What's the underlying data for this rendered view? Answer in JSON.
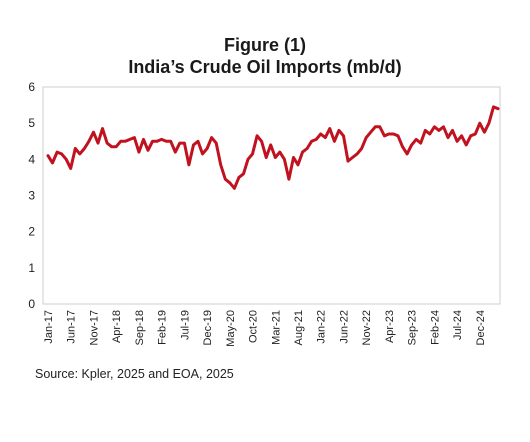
{
  "chart_data": {
    "type": "line",
    "title": "Figure (1)",
    "subtitle": "India’s Crude Oil Imports (mb/d)",
    "xlabel": "",
    "ylabel": "",
    "ylim": [
      0,
      6
    ],
    "yticks": [
      "0",
      "1",
      "2",
      "3",
      "4",
      "5",
      "6"
    ],
    "xtick_labels": [
      "Jan-17",
      "Jun-17",
      "Nov-17",
      "Apr-18",
      "Sep-18",
      "Feb-19",
      "Jul-19",
      "Dec-19",
      "May-20",
      "Oct-20",
      "Mar-21",
      "Aug-21",
      "Jan-22",
      "Jun-22",
      "Nov-22",
      "Apr-23",
      "Sep-23",
      "Feb-24",
      "Jul-24",
      "Dec-24"
    ],
    "grid": false,
    "legend": "none",
    "series": [
      {
        "color": "#c1121f",
        "x": [
          "Jan-17",
          "Feb-17",
          "Mar-17",
          "Apr-17",
          "May-17",
          "Jun-17",
          "Jul-17",
          "Aug-17",
          "Sep-17",
          "Oct-17",
          "Nov-17",
          "Dec-17",
          "Jan-18",
          "Feb-18",
          "Mar-18",
          "Apr-18",
          "May-18",
          "Jun-18",
          "Jul-18",
          "Aug-18",
          "Sep-18",
          "Oct-18",
          "Nov-18",
          "Dec-18",
          "Jan-19",
          "Feb-19",
          "Mar-19",
          "Apr-19",
          "May-19",
          "Jun-19",
          "Jul-19",
          "Aug-19",
          "Sep-19",
          "Oct-19",
          "Nov-19",
          "Dec-19",
          "Jan-20",
          "Feb-20",
          "Mar-20",
          "Apr-20",
          "May-20",
          "Jun-20",
          "Jul-20",
          "Aug-20",
          "Sep-20",
          "Oct-20",
          "Nov-20",
          "Dec-20",
          "Jan-21",
          "Feb-21",
          "Mar-21",
          "Apr-21",
          "May-21",
          "Jun-21",
          "Jul-21",
          "Aug-21",
          "Sep-21",
          "Oct-21",
          "Nov-21",
          "Dec-21",
          "Jan-22",
          "Feb-22",
          "Mar-22",
          "Apr-22",
          "May-22",
          "Jun-22",
          "Jul-22",
          "Aug-22",
          "Sep-22",
          "Oct-22",
          "Nov-22",
          "Dec-22",
          "Jan-23",
          "Feb-23",
          "Mar-23",
          "Apr-23",
          "May-23",
          "Jun-23",
          "Jul-23",
          "Aug-23",
          "Sep-23",
          "Oct-23",
          "Nov-23",
          "Dec-23",
          "Jan-24",
          "Feb-24",
          "Mar-24",
          "Apr-24",
          "May-24",
          "Jun-24",
          "Jul-24",
          "Aug-24",
          "Sep-24",
          "Oct-24",
          "Nov-24",
          "Dec-24",
          "Jan-25",
          "Feb-25",
          "Mar-25",
          "Apr-25"
        ],
        "values": [
          4.1,
          3.9,
          4.2,
          4.15,
          4.0,
          3.75,
          4.3,
          4.15,
          4.3,
          4.5,
          4.75,
          4.45,
          4.85,
          4.45,
          4.35,
          4.35,
          4.5,
          4.5,
          4.55,
          4.6,
          4.2,
          4.55,
          4.25,
          4.5,
          4.5,
          4.55,
          4.5,
          4.5,
          4.2,
          4.45,
          4.45,
          3.85,
          4.4,
          4.5,
          4.15,
          4.3,
          4.6,
          4.45,
          3.85,
          3.45,
          3.35,
          3.2,
          3.5,
          3.6,
          4.0,
          4.15,
          4.65,
          4.5,
          4.05,
          4.4,
          4.05,
          4.2,
          4.0,
          3.45,
          4.05,
          3.85,
          4.2,
          4.3,
          4.5,
          4.55,
          4.7,
          4.6,
          4.85,
          4.5,
          4.8,
          4.65,
          3.95,
          4.05,
          4.15,
          4.3,
          4.6,
          4.75,
          4.9,
          4.9,
          4.65,
          4.7,
          4.7,
          4.65,
          4.35,
          4.15,
          4.4,
          4.55,
          4.45,
          4.8,
          4.7,
          4.9,
          4.8,
          4.9,
          4.6,
          4.8,
          4.5,
          4.65,
          4.4,
          4.65,
          4.7,
          5.0,
          4.75,
          5.0,
          5.45,
          5.4
        ]
      }
    ]
  },
  "source": "Source: Kpler, 2025 and EOA, 2025"
}
